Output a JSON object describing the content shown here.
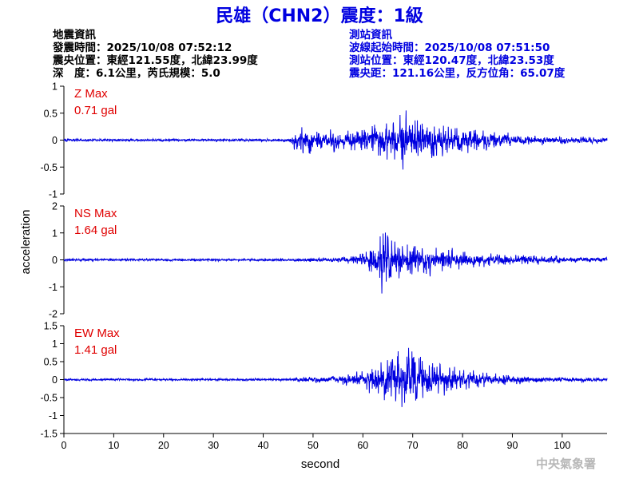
{
  "title": "民雄（CHN2）震度：1級",
  "quake_info": {
    "heading": "地震資訊",
    "origin_time": "發震時間：2025/10/08 07:52:12",
    "epicenter": "震央位置：東經121.55度，北緯23.99度",
    "depth_magnitude": "深　度：6.1公里，芮氏規模：5.0"
  },
  "station_info": {
    "heading": "測站資訊",
    "wave_start": "波線起始時間：2025/10/08 07:51:50",
    "station_location": "測站位置：東經120.47度，北緯23.53度",
    "distance_azimuth": "震央距：121.16公里，反方位角：65.07度"
  },
  "footer": "中央氣象署",
  "colors": {
    "trace": "#0000e0",
    "title": "#0000e0",
    "station_text": "#0000e0",
    "max_label": "#e00000"
  },
  "chart_data": {
    "type": "line",
    "xlabel": "second",
    "ylabel": "acceleration",
    "xlim": [
      0,
      109
    ],
    "xticks": [
      0,
      10,
      20,
      30,
      40,
      50,
      60,
      70,
      80,
      90,
      100
    ],
    "grid": false,
    "panels": [
      {
        "component": "Z",
        "max_title": "Z Max",
        "max_value": "0.71 gal",
        "ylim": [
          -1,
          1
        ],
        "yticks": [
          -1,
          -0.5,
          0,
          0.5,
          1
        ],
        "ytick_labels": [
          "-1",
          "-0.5",
          "0",
          "0.5",
          "1"
        ],
        "baseline_noise": 0.045,
        "envelope": [
          [
            0,
            0.04
          ],
          [
            45,
            0.05
          ],
          [
            46,
            0.2
          ],
          [
            48,
            0.36
          ],
          [
            52,
            0.3
          ],
          [
            56,
            0.27
          ],
          [
            60,
            0.32
          ],
          [
            63,
            0.45
          ],
          [
            66,
            0.6
          ],
          [
            68,
            0.7
          ],
          [
            70,
            0.6
          ],
          [
            74,
            0.42
          ],
          [
            80,
            0.35
          ],
          [
            86,
            0.24
          ],
          [
            92,
            0.18
          ],
          [
            100,
            0.14
          ],
          [
            109,
            0.1
          ]
        ]
      },
      {
        "component": "NS",
        "max_title": "NS Max",
        "max_value": "1.64 gal",
        "ylim": [
          -2,
          2
        ],
        "yticks": [
          -2,
          -1,
          0,
          1,
          2
        ],
        "ytick_labels": [
          "-2",
          "-1",
          "0",
          "1",
          "2"
        ],
        "baseline_noise": 0.08,
        "envelope": [
          [
            0,
            0.07
          ],
          [
            45,
            0.08
          ],
          [
            48,
            0.13
          ],
          [
            55,
            0.17
          ],
          [
            60,
            0.3
          ],
          [
            62,
            0.9
          ],
          [
            63.5,
            1.6
          ],
          [
            66,
            1.1
          ],
          [
            70,
            0.95
          ],
          [
            75,
            0.7
          ],
          [
            80,
            0.5
          ],
          [
            85,
            0.35
          ],
          [
            90,
            0.28
          ],
          [
            100,
            0.2
          ],
          [
            109,
            0.16
          ]
        ]
      },
      {
        "component": "EW",
        "max_title": "EW Max",
        "max_value": "1.41 gal",
        "ylim": [
          -1.5,
          1.5
        ],
        "yticks": [
          -1.5,
          -1,
          -0.5,
          0,
          0.5,
          1,
          1.5
        ],
        "ytick_labels": [
          "-1.5",
          "-1",
          "-0.5",
          "0",
          "0.5",
          "1",
          "1.5"
        ],
        "baseline_noise": 0.055,
        "envelope": [
          [
            0,
            0.05
          ],
          [
            45,
            0.06
          ],
          [
            48,
            0.15
          ],
          [
            55,
            0.18
          ],
          [
            60,
            0.35
          ],
          [
            63,
            0.75
          ],
          [
            66,
            1.0
          ],
          [
            69.5,
            1.4
          ],
          [
            72,
            0.9
          ],
          [
            76,
            0.6
          ],
          [
            80,
            0.4
          ],
          [
            85,
            0.3
          ],
          [
            92,
            0.2
          ],
          [
            100,
            0.12
          ],
          [
            109,
            0.1
          ]
        ]
      }
    ]
  }
}
